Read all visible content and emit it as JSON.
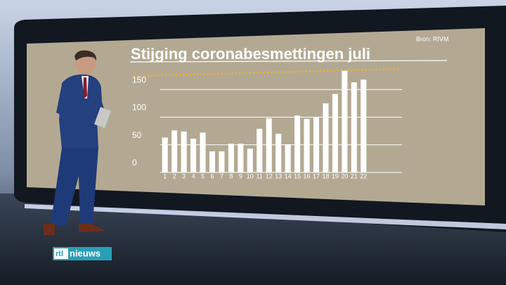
{
  "chart_data": {
    "type": "bar",
    "title": "Stijging coronabesmettingen juli",
    "source": "Bron: RIVM",
    "categories": [
      "1",
      "2",
      "3",
      "4",
      "5",
      "6",
      "7",
      "8",
      "9",
      "10",
      "11",
      "12",
      "13",
      "14",
      "15",
      "16",
      "17",
      "18",
      "19",
      "20",
      "21",
      "22"
    ],
    "values": [
      63,
      76,
      74,
      61,
      72,
      38,
      38,
      52,
      52,
      43,
      79,
      98,
      70,
      51,
      103,
      97,
      100,
      125,
      142,
      184,
      163,
      168
    ],
    "color": "#ffffff",
    "ylim": [
      0,
      200
    ],
    "yticks": [
      0,
      50,
      100,
      150
    ],
    "grid": true
  },
  "logo": {
    "brand": "rtl",
    "name": "nieuws"
  }
}
